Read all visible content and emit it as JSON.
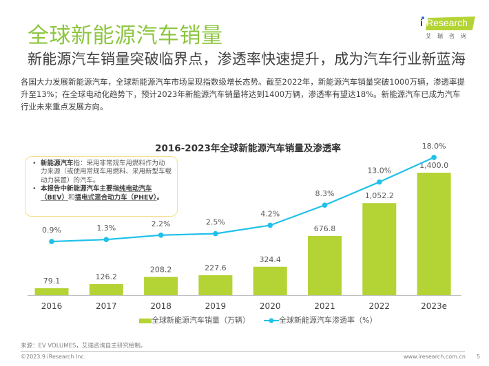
{
  "header": {
    "title": "全球新能源汽车销量",
    "subtitle": "新能源汽车销量突破临界点，渗透率快速提升，成为汽车行业新蓝海",
    "body": "各国大力发展新能源汽车，全球新能源汽车市场呈现指数级增长态势。截至2022年，新能源汽车销量突破1000万辆，渗透率提升至13%；在全球电动化趋势下，预计2023年新能源汽车销量将达到1400万辆，渗透率有望达18%。新能源汽车已成为汽车行业未来重点发展方向。"
  },
  "logo": {
    "name": "iResearch",
    "name_i": "i",
    "name_rest": "Research",
    "cn": "艾瑞咨询"
  },
  "note": {
    "item1_bold": "新能源汽车",
    "item1_text": "指：采用非常规车用燃料作为动力来源（或使用常规车用燃料、采用新型车载动力装置）的汽车。",
    "item2_bold_a": "本报告中新能源汽车主要指",
    "item2_u1": "纯电动汽车（BEV）",
    "item2_mid": "和",
    "item2_u2": "插电式混合动力车（PHEV）",
    "item2_end": "。"
  },
  "colors": {
    "title_green": "#8cc63f",
    "bar_green": "#b4d334",
    "line_blue": "#1fc0ea",
    "note_border": "#f5de8a"
  },
  "chart_data": {
    "type": "bar+line",
    "title": "2016-2023年全球新能源汽车销量及渗透率",
    "categories": [
      "2016",
      "2017",
      "2018",
      "2019",
      "2020",
      "2021",
      "2022",
      "2023e"
    ],
    "series": [
      {
        "name": "全球新能源汽车销量（万辆）",
        "type": "bar",
        "values": [
          79.1,
          126.2,
          208.2,
          227.6,
          324.4,
          676.8,
          1052.2,
          1400.0
        ],
        "labels": [
          "79.1",
          "126.2",
          "208.2",
          "227.6",
          "324.4",
          "676.8",
          "1,052.2",
          "1,400.0"
        ]
      },
      {
        "name": "全球新能源汽车渗透率（%）",
        "type": "line",
        "values": [
          0.9,
          1.3,
          2.2,
          2.5,
          4.2,
          8.3,
          13.0,
          18.0
        ],
        "labels": [
          "0.9%",
          "1.3%",
          "2.2%",
          "2.5%",
          "4.2%",
          "8.3%",
          "13.0%",
          "18.0%"
        ]
      }
    ],
    "xlabel": "",
    "ylabel": "",
    "grid": false,
    "legend_position": "bottom"
  },
  "footer": {
    "source": "来源：EV VOLUMES，艾瑞咨询自主研究绘制。",
    "copyright": "©2023.9 iResearch Inc.",
    "url": "www.iresearch.com.cn",
    "page": "5"
  }
}
